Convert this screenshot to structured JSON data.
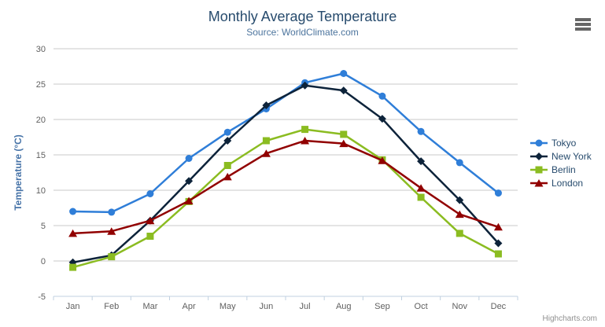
{
  "chart": {
    "title": "Monthly Average Temperature",
    "subtitle": "Source: WorldClimate.com",
    "credits": "Highcharts.com"
  },
  "export_menu": {
    "icon": "hamburger-menu-icon"
  },
  "colors": {
    "title": "#274b6d",
    "subtitle": "#4d759e",
    "axis_title": "#4572a7",
    "tick_label": "#606060",
    "grid_line": "#c8c8c8",
    "axis_line": "#c0d0e0",
    "legend_text": "#274b6d",
    "credits_text": "#909090",
    "export_icon": "#666666"
  },
  "chart_data": {
    "type": "line",
    "title": "Monthly Average Temperature",
    "subtitle": "Source: WorldClimate.com",
    "categories": [
      "Jan",
      "Feb",
      "Mar",
      "Apr",
      "May",
      "Jun",
      "Jul",
      "Aug",
      "Sep",
      "Oct",
      "Nov",
      "Dec"
    ],
    "series": [
      {
        "name": "Tokyo",
        "color": "#2f7ed8",
        "marker": "circle",
        "values": [
          7.0,
          6.9,
          9.5,
          14.5,
          18.2,
          21.5,
          25.2,
          26.5,
          23.3,
          18.3,
          13.9,
          9.6
        ]
      },
      {
        "name": "New York",
        "color": "#0d233a",
        "marker": "diamond",
        "values": [
          -0.2,
          0.8,
          5.7,
          11.3,
          17.0,
          22.0,
          24.8,
          24.1,
          20.1,
          14.1,
          8.6,
          2.5
        ]
      },
      {
        "name": "Berlin",
        "color": "#8bbc21",
        "marker": "square",
        "values": [
          -0.9,
          0.6,
          3.5,
          8.4,
          13.5,
          17.0,
          18.6,
          17.9,
          14.3,
          9.0,
          3.9,
          1.0
        ]
      },
      {
        "name": "London",
        "color": "#910000",
        "marker": "triangle",
        "values": [
          3.9,
          4.2,
          5.7,
          8.5,
          11.9,
          15.2,
          17.0,
          16.6,
          14.2,
          10.3,
          6.6,
          4.8
        ]
      }
    ],
    "xlabel": "",
    "ylabel": "Temperature (°C)",
    "ylim": [
      -5,
      30
    ],
    "ytick_interval": 5,
    "yticks": [
      "-5",
      "0",
      "5",
      "10",
      "15",
      "20",
      "25",
      "30"
    ],
    "grid": true,
    "legend_position": "right"
  }
}
